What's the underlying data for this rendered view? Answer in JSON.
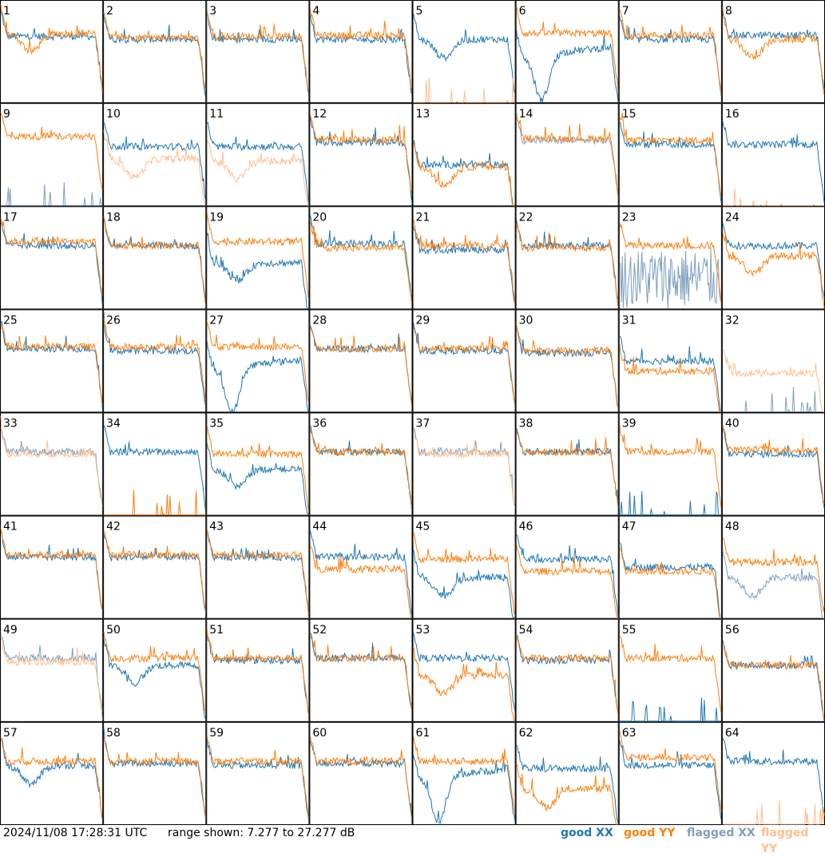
{
  "chart_data": {
    "type": "line",
    "title": "",
    "range_min_db": 7.277,
    "range_max_db": 27.277,
    "grid": false,
    "legend_placement": "bottom-right",
    "colors": {
      "good_xx": "#1f77b4",
      "good_yy": "#ff7f0e",
      "flagged_xx": "#7f9fbf",
      "flagged_yy": "#ffbf8f"
    },
    "panels": [
      {
        "id": "1",
        "xx": "good",
        "yy": "good",
        "xx_level": 0.65,
        "yy_level": 0.68,
        "xx_shape": "normal",
        "yy_shape": "dip"
      },
      {
        "id": "2",
        "xx": "good",
        "yy": "good",
        "xx_level": 0.62,
        "yy_level": 0.64,
        "xx_shape": "normal",
        "yy_shape": "normal"
      },
      {
        "id": "3",
        "xx": "good",
        "yy": "good",
        "xx_level": 0.62,
        "yy_level": 0.65,
        "xx_shape": "normal",
        "yy_shape": "normal"
      },
      {
        "id": "4",
        "xx": "good",
        "yy": "good",
        "xx_level": 0.62,
        "yy_level": 0.66,
        "xx_shape": "normal",
        "yy_shape": "normal"
      },
      {
        "id": "5",
        "xx": "good",
        "yy": "flagged",
        "xx_level": 0.62,
        "yy_level": 0.0,
        "xx_shape": "dip",
        "yy_shape": "spikes"
      },
      {
        "id": "6",
        "xx": "good",
        "yy": "good",
        "xx_level": 0.45,
        "yy_level": 0.68,
        "xx_shape": "deepdip",
        "yy_shape": "normal"
      },
      {
        "id": "7",
        "xx": "good",
        "yy": "good",
        "xx_level": 0.62,
        "yy_level": 0.66,
        "xx_shape": "normal",
        "yy_shape": "normal"
      },
      {
        "id": "8",
        "xx": "good",
        "yy": "good",
        "xx_level": 0.66,
        "yy_level": 0.62,
        "xx_shape": "normal",
        "yy_shape": "dip"
      },
      {
        "id": "9",
        "xx": "flagged",
        "yy": "good",
        "xx_level": 0.0,
        "yy_level": 0.68,
        "xx_shape": "spikes",
        "yy_shape": "normal"
      },
      {
        "id": "10",
        "xx": "good",
        "yy": "flagged",
        "xx_level": 0.58,
        "yy_level": 0.46,
        "xx_shape": "normal",
        "yy_shape": "dip"
      },
      {
        "id": "11",
        "xx": "good",
        "yy": "flagged",
        "xx_level": 0.58,
        "yy_level": 0.44,
        "xx_shape": "normal",
        "yy_shape": "dip"
      },
      {
        "id": "12",
        "xx": "good",
        "yy": "good",
        "xx_level": 0.62,
        "yy_level": 0.65,
        "xx_shape": "normal",
        "yy_shape": "normal"
      },
      {
        "id": "13",
        "xx": "good",
        "yy": "good",
        "xx_level": 0.4,
        "yy_level": 0.38,
        "xx_shape": "normal",
        "yy_shape": "dip"
      },
      {
        "id": "14",
        "xx": "flagged",
        "yy": "good",
        "xx_level": 0.64,
        "yy_level": 0.66,
        "xx_shape": "normal",
        "yy_shape": "normal"
      },
      {
        "id": "15",
        "xx": "good",
        "yy": "good",
        "xx_level": 0.6,
        "yy_level": 0.64,
        "xx_shape": "normal",
        "yy_shape": "normal"
      },
      {
        "id": "16",
        "xx": "good",
        "yy": "flagged",
        "xx_level": 0.6,
        "yy_level": 0.0,
        "xx_shape": "normal",
        "yy_shape": "spikes"
      },
      {
        "id": "17",
        "xx": "good",
        "yy": "good",
        "xx_level": 0.62,
        "yy_level": 0.66,
        "xx_shape": "normal",
        "yy_shape": "normal"
      },
      {
        "id": "18",
        "xx": "good",
        "yy": "good",
        "xx_level": 0.62,
        "yy_level": 0.62,
        "xx_shape": "normal",
        "yy_shape": "normal"
      },
      {
        "id": "19",
        "xx": "good",
        "yy": "good",
        "xx_level": 0.45,
        "yy_level": 0.66,
        "xx_shape": "dip",
        "yy_shape": "normal"
      },
      {
        "id": "20",
        "xx": "good",
        "yy": "good",
        "xx_level": 0.64,
        "yy_level": 0.6,
        "xx_shape": "normal",
        "yy_shape": "normal"
      },
      {
        "id": "21",
        "xx": "good",
        "yy": "good",
        "xx_level": 0.58,
        "yy_level": 0.62,
        "xx_shape": "normal",
        "yy_shape": "normal"
      },
      {
        "id": "22",
        "xx": "good",
        "yy": "good",
        "xx_level": 0.62,
        "yy_level": 0.6,
        "xx_shape": "normal",
        "yy_shape": "normal"
      },
      {
        "id": "23",
        "xx": "flagged",
        "yy": "good",
        "xx_level": 0.3,
        "yy_level": 0.62,
        "xx_shape": "noise",
        "yy_shape": "normal"
      },
      {
        "id": "24",
        "xx": "good",
        "yy": "good",
        "xx_level": 0.62,
        "yy_level": 0.52,
        "xx_shape": "normal",
        "yy_shape": "dip"
      },
      {
        "id": "25",
        "xx": "good",
        "yy": "good",
        "xx_level": 0.62,
        "yy_level": 0.64,
        "xx_shape": "normal",
        "yy_shape": "normal"
      },
      {
        "id": "26",
        "xx": "good",
        "yy": "good",
        "xx_level": 0.6,
        "yy_level": 0.64,
        "xx_shape": "normal",
        "yy_shape": "normal"
      },
      {
        "id": "27",
        "xx": "good",
        "yy": "good",
        "xx_level": 0.42,
        "yy_level": 0.64,
        "xx_shape": "deepdip",
        "yy_shape": "normal"
      },
      {
        "id": "28",
        "xx": "good",
        "yy": "good",
        "xx_level": 0.62,
        "yy_level": 0.62,
        "xx_shape": "normal",
        "yy_shape": "normal"
      },
      {
        "id": "29",
        "xx": "good",
        "yy": "good",
        "xx_level": 0.6,
        "yy_level": 0.62,
        "xx_shape": "normal",
        "yy_shape": "normal"
      },
      {
        "id": "30",
        "xx": "good",
        "yy": "good",
        "xx_level": 0.58,
        "yy_level": 0.6,
        "xx_shape": "normal",
        "yy_shape": "normal"
      },
      {
        "id": "31",
        "xx": "good",
        "yy": "good",
        "xx_level": 0.5,
        "yy_level": 0.4,
        "xx_shape": "normal",
        "yy_shape": "normal"
      },
      {
        "id": "32",
        "xx": "flagged",
        "yy": "flagged",
        "xx_level": 0.0,
        "yy_level": 0.38,
        "xx_shape": "spikes",
        "yy_shape": "normal"
      },
      {
        "id": "33",
        "xx": "flagged",
        "yy": "flagged",
        "xx_level": 0.62,
        "yy_level": 0.6,
        "xx_shape": "normal",
        "yy_shape": "normal"
      },
      {
        "id": "34",
        "xx": "good",
        "yy": "good",
        "xx_level": 0.62,
        "yy_level": 0.0,
        "xx_shape": "normal",
        "yy_shape": "spikes"
      },
      {
        "id": "35",
        "xx": "good",
        "yy": "good",
        "xx_level": 0.45,
        "yy_level": 0.6,
        "xx_shape": "dip",
        "yy_shape": "normal"
      },
      {
        "id": "36",
        "xx": "good",
        "yy": "good",
        "xx_level": 0.62,
        "yy_level": 0.62,
        "xx_shape": "normal",
        "yy_shape": "normal"
      },
      {
        "id": "37",
        "xx": "flagged",
        "yy": "flagged",
        "xx_level": 0.62,
        "yy_level": 0.6,
        "xx_shape": "normal",
        "yy_shape": "normal"
      },
      {
        "id": "38",
        "xx": "good",
        "yy": "good",
        "xx_level": 0.62,
        "yy_level": 0.62,
        "xx_shape": "normal",
        "yy_shape": "normal"
      },
      {
        "id": "39",
        "xx": "good",
        "yy": "good",
        "xx_level": 0.0,
        "yy_level": 0.62,
        "xx_shape": "spikes",
        "yy_shape": "normal"
      },
      {
        "id": "40",
        "xx": "good",
        "yy": "good",
        "xx_level": 0.6,
        "yy_level": 0.64,
        "xx_shape": "normal",
        "yy_shape": "normal"
      },
      {
        "id": "41",
        "xx": "good",
        "yy": "good",
        "xx_level": 0.6,
        "yy_level": 0.62,
        "xx_shape": "normal",
        "yy_shape": "normal"
      },
      {
        "id": "42",
        "xx": "good",
        "yy": "good",
        "xx_level": 0.6,
        "yy_level": 0.62,
        "xx_shape": "normal",
        "yy_shape": "normal"
      },
      {
        "id": "43",
        "xx": "good",
        "yy": "good",
        "xx_level": 0.6,
        "yy_level": 0.62,
        "xx_shape": "normal",
        "yy_shape": "normal"
      },
      {
        "id": "44",
        "xx": "good",
        "yy": "good",
        "xx_level": 0.6,
        "yy_level": 0.48,
        "xx_shape": "normal",
        "yy_shape": "normal"
      },
      {
        "id": "45",
        "xx": "good",
        "yy": "good",
        "xx_level": 0.4,
        "yy_level": 0.58,
        "xx_shape": "dip",
        "yy_shape": "normal"
      },
      {
        "id": "46",
        "xx": "good",
        "yy": "good",
        "xx_level": 0.58,
        "yy_level": 0.46,
        "xx_shape": "normal",
        "yy_shape": "normal"
      },
      {
        "id": "47",
        "xx": "good",
        "yy": "good",
        "xx_level": 0.5,
        "yy_level": 0.46,
        "xx_shape": "normal",
        "yy_shape": "normal"
      },
      {
        "id": "48",
        "xx": "flagged",
        "yy": "good",
        "xx_level": 0.4,
        "yy_level": 0.55,
        "xx_shape": "dip",
        "yy_shape": "normal"
      },
      {
        "id": "49",
        "xx": "flagged",
        "yy": "flagged",
        "xx_level": 0.62,
        "yy_level": 0.58,
        "xx_shape": "normal",
        "yy_shape": "normal"
      },
      {
        "id": "50",
        "xx": "good",
        "yy": "good",
        "xx_level": 0.55,
        "yy_level": 0.62,
        "xx_shape": "dip",
        "yy_shape": "normal"
      },
      {
        "id": "51",
        "xx": "good",
        "yy": "good",
        "xx_level": 0.6,
        "yy_level": 0.62,
        "xx_shape": "normal",
        "yy_shape": "normal"
      },
      {
        "id": "52",
        "xx": "good",
        "yy": "good",
        "xx_level": 0.62,
        "yy_level": 0.62,
        "xx_shape": "normal",
        "yy_shape": "normal"
      },
      {
        "id": "53",
        "xx": "good",
        "yy": "good",
        "xx_level": 0.62,
        "yy_level": 0.45,
        "xx_shape": "normal",
        "yy_shape": "dip"
      },
      {
        "id": "54",
        "xx": "good",
        "yy": "good",
        "xx_level": 0.6,
        "yy_level": 0.62,
        "xx_shape": "normal",
        "yy_shape": "normal"
      },
      {
        "id": "55",
        "xx": "good",
        "yy": "good",
        "xx_level": 0.0,
        "yy_level": 0.62,
        "xx_shape": "spikes",
        "yy_shape": "normal"
      },
      {
        "id": "56",
        "xx": "good",
        "yy": "good",
        "xx_level": 0.55,
        "yy_level": 0.55,
        "xx_shape": "normal",
        "yy_shape": "normal"
      },
      {
        "id": "57",
        "xx": "good",
        "yy": "good",
        "xx_level": 0.58,
        "yy_level": 0.62,
        "xx_shape": "dip",
        "yy_shape": "normal"
      },
      {
        "id": "58",
        "xx": "good",
        "yy": "good",
        "xx_level": 0.6,
        "yy_level": 0.62,
        "xx_shape": "normal",
        "yy_shape": "normal"
      },
      {
        "id": "59",
        "xx": "good",
        "yy": "good",
        "xx_level": 0.58,
        "yy_level": 0.62,
        "xx_shape": "normal",
        "yy_shape": "normal"
      },
      {
        "id": "60",
        "xx": "good",
        "yy": "good",
        "xx_level": 0.6,
        "yy_level": 0.62,
        "xx_shape": "normal",
        "yy_shape": "normal"
      },
      {
        "id": "61",
        "xx": "good",
        "yy": "good",
        "xx_level": 0.45,
        "yy_level": 0.62,
        "xx_shape": "deepdip",
        "yy_shape": "normal"
      },
      {
        "id": "62",
        "xx": "good",
        "yy": "good",
        "xx_level": 0.55,
        "yy_level": 0.35,
        "xx_shape": "normal",
        "yy_shape": "dip"
      },
      {
        "id": "63",
        "xx": "good",
        "yy": "good",
        "xx_level": 0.58,
        "yy_level": 0.66,
        "xx_shape": "normal",
        "yy_shape": "normal"
      },
      {
        "id": "64",
        "xx": "good",
        "yy": "flagged",
        "xx_level": 0.62,
        "yy_level": 0.0,
        "xx_shape": "normal",
        "yy_shape": "spikes"
      }
    ]
  },
  "footer": {
    "timestamp": "2024/11/08 17:28:31 UTC",
    "range_text": "range shown: 7.277 to 27.277 dB",
    "legend": {
      "good_xx": "good XX",
      "good_yy": "good YY",
      "flagged_xx": "flagged XX",
      "flagged_yy": "flagged YY"
    }
  }
}
